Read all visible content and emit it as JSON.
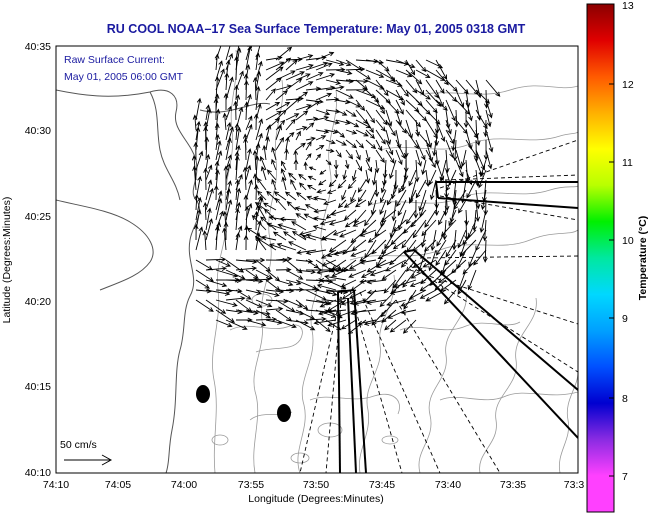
{
  "header": {
    "title": "RU COOL  NOAA–17  Sea Surface Temperature:  May 01, 2005 0318 GMT"
  },
  "inset": {
    "line1": "Raw Surface Current:",
    "line2": "May 01, 2005 06:00 GMT"
  },
  "axes": {
    "xlabel": "Longitude (Degrees:Minutes)",
    "ylabel": "Latitude (Degrees:Minutes)",
    "xticks": [
      "74:10",
      "74:05",
      "74:00",
      "73:55",
      "73:50",
      "73:45",
      "73:40",
      "73:35",
      "73:3"
    ],
    "yticks": [
      "40:35",
      "40:30",
      "40:25",
      "40:20",
      "40:15",
      "40:10"
    ]
  },
  "colorbar": {
    "label": "Temperature (°C)",
    "ticks": [
      "13",
      "12",
      "11",
      "10",
      "9",
      "8",
      "7"
    ],
    "range": [
      6.5,
      13
    ],
    "colors": [
      "#8b0000",
      "#e00000",
      "#ff5a00",
      "#ffb000",
      "#ffff00",
      "#b8ff00",
      "#00f000",
      "#00e8a0",
      "#00d8ff",
      "#00a0ff",
      "#0050ff",
      "#0000d0",
      "#8a2be2",
      "#ff40ff",
      "#ff40ff"
    ]
  },
  "scale_label": "50 cm/s",
  "colors": {
    "title": "#1a1aa0",
    "contour": "#9a9a9a",
    "coast": "#555555"
  }
}
